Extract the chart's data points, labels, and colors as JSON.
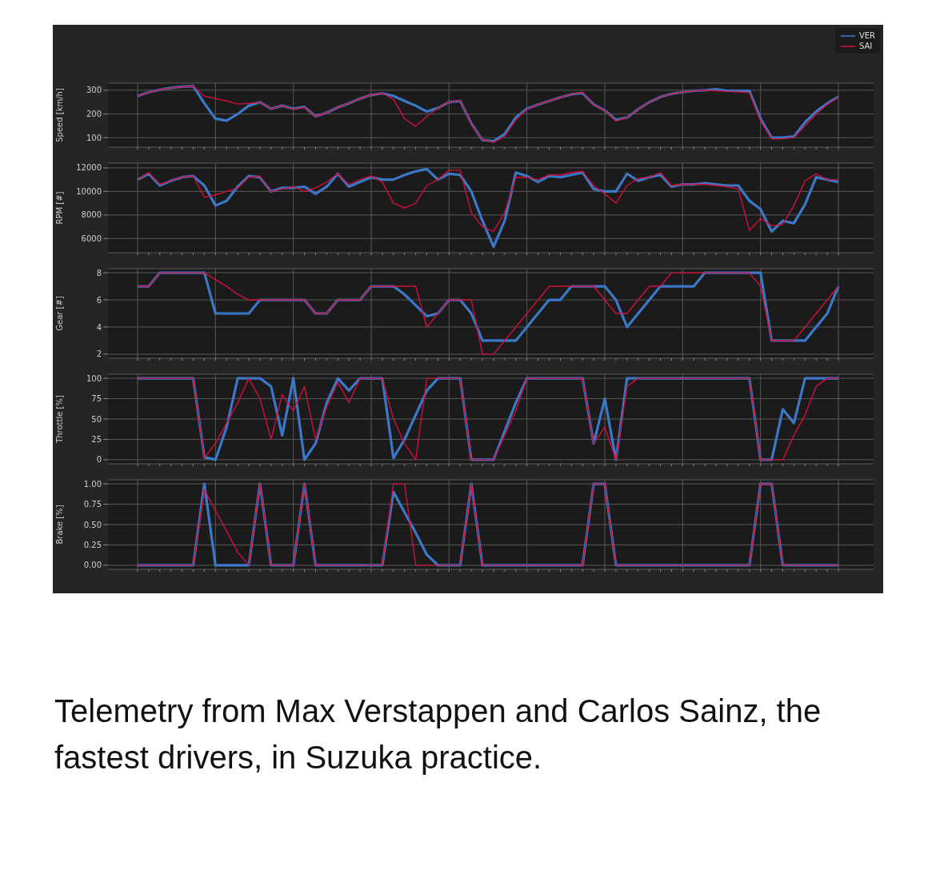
{
  "chart_data": [
    {
      "type": "line",
      "ylabel": "Speed [km/h]",
      "legend": "top right",
      "grid": true,
      "tick_labels": "y",
      "ylim": [
        60,
        330
      ],
      "yticks": [
        100,
        200,
        300
      ],
      "categories": [
        null,
        null,
        null,
        null,
        null,
        null,
        null,
        null,
        null,
        null,
        null,
        null,
        null,
        null,
        null,
        null,
        null,
        null,
        null,
        null,
        null,
        null,
        null,
        null,
        null,
        null,
        null,
        null,
        null,
        null,
        null,
        null,
        null,
        null,
        null,
        null,
        null,
        null,
        null,
        null,
        null,
        null,
        null,
        null,
        null,
        null,
        null,
        null,
        null,
        null,
        null,
        null,
        null,
        null,
        null,
        null,
        null,
        null,
        null,
        null,
        null,
        null,
        null,
        null
      ],
      "series": [
        {
          "name": "VER",
          "color": "#3b78c8",
          "values": [
            275,
            292,
            302,
            310,
            315,
            318,
            245,
            180,
            172,
            200,
            235,
            250,
            222,
            235,
            222,
            230,
            190,
            205,
            228,
            245,
            265,
            280,
            287,
            276,
            255,
            235,
            210,
            225,
            250,
            255,
            160,
            90,
            85,
            115,
            185,
            222,
            240,
            255,
            270,
            283,
            288,
            240,
            215,
            175,
            185,
            220,
            250,
            272,
            285,
            292,
            298,
            300,
            304,
            298,
            298,
            298,
            180,
            100,
            100,
            105,
            165,
            210,
            245,
            272
          ]
        },
        {
          "name": "SAI",
          "color": "#d0103a",
          "values": [
            275,
            292,
            302,
            310,
            315,
            318,
            275,
            265,
            255,
            242,
            245,
            250,
            222,
            235,
            220,
            228,
            190,
            205,
            228,
            245,
            265,
            280,
            287,
            262,
            180,
            148,
            190,
            225,
            250,
            258,
            155,
            92,
            80,
            105,
            175,
            220,
            240,
            255,
            270,
            283,
            292,
            238,
            215,
            170,
            185,
            220,
            250,
            272,
            285,
            292,
            298,
            300,
            298,
            295,
            293,
            290,
            170,
            95,
            95,
            100,
            150,
            200,
            240,
            270
          ]
        }
      ]
    },
    {
      "type": "line",
      "ylabel": "RPM [#]",
      "grid": true,
      "tick_labels": "y",
      "ylim": [
        4800,
        12400
      ],
      "yticks": [
        6000,
        8000,
        10000,
        12000
      ],
      "categories": [
        null,
        null,
        null,
        null,
        null,
        null,
        null,
        null,
        null,
        null,
        null,
        null,
        null,
        null,
        null,
        null,
        null,
        null,
        null,
        null,
        null,
        null,
        null,
        null,
        null,
        null,
        null,
        null,
        null,
        null,
        null,
        null,
        null,
        null,
        null,
        null,
        null,
        null,
        null,
        null,
        null,
        null,
        null,
        null,
        null,
        null,
        null,
        null,
        null,
        null,
        null,
        null,
        null,
        null,
        null,
        null,
        null,
        null,
        null,
        null,
        null,
        null,
        null,
        null
      ],
      "series": [
        {
          "color": "#3b78c8",
          "values": [
            11000,
            11500,
            10500,
            10900,
            11200,
            11300,
            10500,
            8800,
            9200,
            10400,
            11300,
            11200,
            10000,
            10300,
            10300,
            10400,
            9800,
            10400,
            11500,
            10400,
            10800,
            11200,
            11000,
            11000,
            11400,
            11700,
            11900,
            11000,
            11500,
            11400,
            10000,
            7500,
            5300,
            7500,
            11600,
            11300,
            10800,
            11300,
            11200,
            11400,
            11600,
            10200,
            10000,
            10000,
            11500,
            10900,
            11200,
            11400,
            10400,
            10600,
            10600,
            10700,
            10600,
            10500,
            10500,
            9200,
            8500,
            6600,
            7500,
            7300,
            8900,
            11200,
            11000,
            10800
          ]
        },
        {
          "color": "#d0103a",
          "values": [
            11000,
            11600,
            10600,
            10900,
            11200,
            11300,
            9500,
            9700,
            10000,
            10300,
            11200,
            11300,
            10000,
            10200,
            10400,
            10000,
            10300,
            10800,
            11500,
            10600,
            11000,
            11300,
            10800,
            9000,
            8600,
            9000,
            10500,
            11000,
            11800,
            11800,
            8200,
            7000,
            6600,
            8200,
            11200,
            11200,
            11000,
            11400,
            11400,
            11600,
            11700,
            10500,
            9800,
            9000,
            10500,
            11100,
            11200,
            11600,
            10500,
            10600,
            10600,
            10600,
            10500,
            10400,
            10200,
            6700,
            7700,
            7100,
            7200,
            8800,
            10900,
            11500,
            11000,
            11000
          ]
        }
      ]
    },
    {
      "type": "line",
      "ylabel": "Gear [#]",
      "grid": true,
      "tick_labels": "y",
      "ylim": [
        1.7,
        8.3
      ],
      "yticks": [
        2,
        4,
        6,
        8
      ],
      "categories": [
        null,
        null,
        null,
        null,
        null,
        null,
        null,
        null,
        null,
        null,
        null,
        null,
        null,
        null,
        null,
        null,
        null,
        null,
        null,
        null,
        null,
        null,
        null,
        null,
        null,
        null,
        null,
        null,
        null,
        null,
        null,
        null,
        null,
        null,
        null,
        null,
        null,
        null,
        null,
        null,
        null,
        null,
        null,
        null,
        null,
        null,
        null,
        null,
        null,
        null,
        null,
        null,
        null,
        null,
        null,
        null,
        null,
        null,
        null,
        null,
        null,
        null,
        null,
        null
      ],
      "series": [
        {
          "color": "#3b78c8",
          "values": [
            7,
            7,
            8,
            8,
            8,
            8,
            8,
            5,
            5,
            5,
            5,
            6,
            6,
            6,
            6,
            6,
            5,
            5,
            6,
            6,
            6,
            7,
            7,
            7,
            6.4,
            5.6,
            4.8,
            5,
            6,
            6,
            5,
            3,
            3,
            3,
            3,
            4,
            5,
            6,
            6,
            7,
            7,
            7,
            7,
            6,
            4,
            5,
            6,
            7,
            7,
            7,
            7,
            8,
            8,
            8,
            8,
            8,
            8,
            3,
            3,
            3,
            3,
            4,
            5,
            7
          ]
        },
        {
          "color": "#d0103a",
          "values": [
            7,
            7,
            8,
            8,
            8,
            8,
            8,
            7.5,
            7,
            6.4,
            6,
            6,
            6,
            6,
            6,
            6,
            5,
            5,
            6,
            6,
            6,
            7,
            7,
            7,
            7,
            7,
            4,
            5,
            6,
            6,
            6,
            2,
            2,
            3,
            4,
            5,
            6,
            7,
            7,
            7,
            7,
            7,
            6,
            5,
            5,
            6,
            7,
            7,
            8,
            8,
            8,
            8,
            8,
            8,
            8,
            8,
            7,
            3,
            3,
            3,
            4,
            5,
            6,
            7
          ]
        }
      ]
    },
    {
      "type": "line",
      "ylabel": "Throttle [%]",
      "grid": true,
      "tick_labels": "y",
      "ylim": [
        -5,
        105
      ],
      "yticks": [
        0,
        25,
        50,
        75,
        100
      ],
      "categories": [
        null,
        null,
        null,
        null,
        null,
        null,
        null,
        null,
        null,
        null,
        null,
        null,
        null,
        null,
        null,
        null,
        null,
        null,
        null,
        null,
        null,
        null,
        null,
        null,
        null,
        null,
        null,
        null,
        null,
        null,
        null,
        null,
        null,
        null,
        null,
        null,
        null,
        null,
        null,
        null,
        null,
        null,
        null,
        null,
        null,
        null,
        null,
        null,
        null,
        null,
        null,
        null,
        null,
        null,
        null,
        null,
        null,
        null,
        null,
        null,
        null,
        null,
        null,
        null
      ],
      "series": [
        {
          "color": "#3b78c8",
          "values": [
            100,
            100,
            100,
            100,
            100,
            100,
            3,
            0,
            40,
            100,
            100,
            100,
            90,
            30,
            100,
            0,
            20,
            70,
            100,
            85,
            100,
            100,
            100,
            2,
            25,
            55,
            85,
            100,
            100,
            100,
            0,
            0,
            0,
            35,
            70,
            100,
            100,
            100,
            100,
            100,
            100,
            20,
            75,
            0,
            100,
            100,
            100,
            100,
            100,
            100,
            100,
            100,
            100,
            100,
            100,
            100,
            0,
            0,
            62,
            45,
            100,
            100,
            100,
            100
          ]
        },
        {
          "color": "#d0103a",
          "values": [
            100,
            100,
            100,
            100,
            100,
            100,
            2,
            20,
            45,
            70,
            100,
            75,
            25,
            80,
            60,
            90,
            25,
            65,
            95,
            70,
            100,
            100,
            100,
            50,
            20,
            0,
            100,
            100,
            100,
            100,
            0,
            0,
            0,
            30,
            60,
            100,
            100,
            100,
            100,
            100,
            100,
            20,
            40,
            0,
            90,
            100,
            100,
            100,
            100,
            100,
            100,
            100,
            100,
            100,
            100,
            100,
            0,
            0,
            0,
            30,
            55,
            90,
            100,
            100
          ]
        }
      ]
    },
    {
      "type": "line",
      "ylabel": "Brake [%]",
      "grid": true,
      "tick_labels": "y",
      "ylim": [
        -0.05,
        1.05
      ],
      "yticks": [
        {
          "value": 0,
          "label": "0.00"
        },
        {
          "value": 0.25,
          "label": "0.25"
        },
        {
          "value": 0.5,
          "label": "0.50"
        },
        {
          "value": 0.75,
          "label": "0.75"
        },
        {
          "value": 1,
          "label": "1.00"
        }
      ],
      "categories": [
        null,
        null,
        null,
        null,
        null,
        null,
        null,
        null,
        null,
        null,
        null,
        null,
        null,
        null,
        null,
        null,
        null,
        null,
        null,
        null,
        null,
        null,
        null,
        null,
        null,
        null,
        null,
        null,
        null,
        null,
        null,
        null,
        null,
        null,
        null,
        null,
        null,
        null,
        null,
        null,
        null,
        null,
        null,
        null,
        null,
        null,
        null,
        null,
        null,
        null,
        null,
        null,
        null,
        null,
        null,
        null,
        null,
        null,
        null,
        null,
        null,
        null,
        null,
        null
      ],
      "series": [
        {
          "color": "#3b78c8",
          "values": [
            0,
            0,
            0,
            0,
            0,
            0,
            1,
            0,
            0,
            0,
            0,
            1,
            0,
            0,
            0,
            1,
            0,
            0,
            0,
            0,
            0,
            0,
            0,
            0.9,
            0.65,
            0.4,
            0.13,
            0,
            0,
            0,
            1,
            0,
            0,
            0,
            0,
            0,
            0,
            0,
            0,
            0,
            0,
            1,
            1,
            0,
            0,
            0,
            0,
            0,
            0,
            0,
            0,
            0,
            0,
            0,
            0,
            0,
            1,
            1,
            0,
            0,
            0,
            0,
            0,
            0
          ]
        },
        {
          "color": "#d0103a",
          "values": [
            0,
            0,
            0,
            0,
            0,
            0,
            0.93,
            0.67,
            0.42,
            0.16,
            0,
            1,
            0,
            0,
            0,
            1,
            0,
            0,
            0,
            0,
            0,
            0,
            0,
            1,
            1,
            0,
            0,
            0,
            0,
            0,
            1,
            0,
            0,
            0,
            0,
            0,
            0,
            0,
            0,
            0,
            0,
            1,
            1,
            0,
            0,
            0,
            0,
            0,
            0,
            0,
            0,
            0,
            0,
            0,
            0,
            0,
            1,
            1,
            0,
            0,
            0,
            0,
            0,
            0
          ]
        }
      ],
      "annotations": [
        "Telemetry from Max Verstappen and Carlos Sainz, the fastest drivers, in Suzuka practice."
      ]
    }
  ]
}
